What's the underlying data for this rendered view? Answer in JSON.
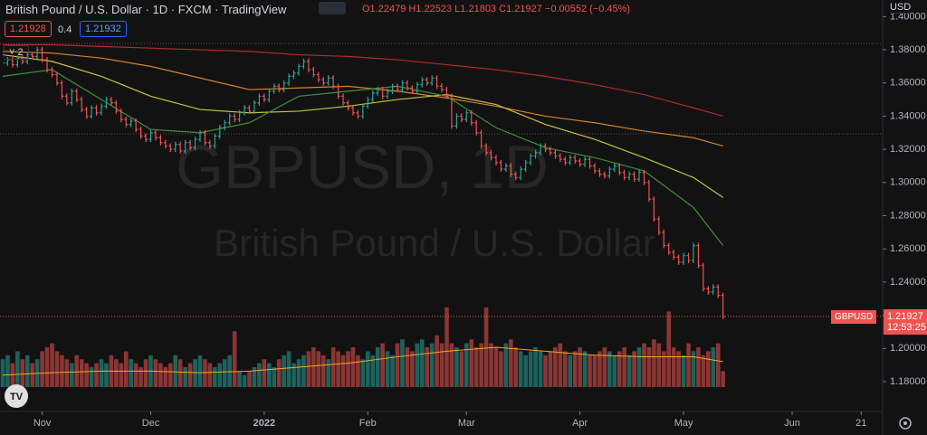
{
  "header": {
    "symbol": "British Pound / U.S. Dollar · 1D · FXCM · TradingView",
    "ohlc": [
      "O1.22479",
      "H1.22523",
      "L1.21803",
      "C1.21927"
    ],
    "change": "−0.00552 (−0.45%)",
    "sell": "1.21928",
    "spread": "0.4",
    "buy": "1.21932",
    "collapse": "2",
    "currency": "USD"
  },
  "chart_data": {
    "type": "ohlc",
    "watermark": [
      "GBPUSD, 1D",
      "British Pound / U.S. Dollar"
    ],
    "up_color": "#26a69a",
    "down_color": "#ef5350",
    "values": [
      1.372,
      1.374,
      1.371,
      1.375,
      1.373,
      1.377,
      1.376,
      1.38,
      1.374,
      1.368,
      1.365,
      1.36,
      1.352,
      1.348,
      1.355,
      1.35,
      1.344,
      1.34,
      1.345,
      1.342,
      1.346,
      1.35,
      1.348,
      1.343,
      1.338,
      1.335,
      1.337,
      1.332,
      1.328,
      1.326,
      1.33,
      1.327,
      1.324,
      1.322,
      1.32,
      1.323,
      1.319,
      1.324,
      1.321,
      1.326,
      1.33,
      1.324,
      1.322,
      1.328,
      1.333,
      1.336,
      1.34,
      1.338,
      1.342,
      1.345,
      1.343,
      1.348,
      1.352,
      1.35,
      1.355,
      1.358,
      1.356,
      1.36,
      1.364,
      1.366,
      1.37,
      1.373,
      1.368,
      1.365,
      1.362,
      1.36,
      1.363,
      1.358,
      1.352,
      1.348,
      1.345,
      1.342,
      1.34,
      1.346,
      1.35,
      1.354,
      1.356,
      1.352,
      1.355,
      1.358,
      1.356,
      1.36,
      1.357,
      1.355,
      1.359,
      1.362,
      1.36,
      1.363,
      1.358,
      1.356,
      1.352,
      1.334,
      1.34,
      1.338,
      1.342,
      1.336,
      1.33,
      1.322,
      1.318,
      1.315,
      1.312,
      1.308,
      1.31,
      1.305,
      1.303,
      1.308,
      1.312,
      1.316,
      1.318,
      1.322,
      1.32,
      1.318,
      1.316,
      1.314,
      1.312,
      1.315,
      1.313,
      1.311,
      1.314,
      1.31,
      1.307,
      1.305,
      1.304,
      1.308,
      1.31,
      1.306,
      1.303,
      1.305,
      1.302,
      1.306,
      1.3,
      1.29,
      1.278,
      1.27,
      1.262,
      1.258,
      1.255,
      1.252,
      1.256,
      1.253,
      1.262,
      1.25,
      1.236,
      1.234,
      1.237,
      1.232,
      1.21927
    ],
    "volume": [
      35,
      40,
      30,
      45,
      35,
      40,
      30,
      35,
      45,
      50,
      55,
      45,
      40,
      35,
      30,
      40,
      35,
      30,
      25,
      30,
      35,
      30,
      40,
      35,
      30,
      45,
      35,
      30,
      25,
      35,
      40,
      35,
      30,
      25,
      30,
      40,
      35,
      25,
      30,
      35,
      40,
      35,
      30,
      25,
      30,
      35,
      40,
      70,
      20,
      15,
      20,
      25,
      30,
      35,
      30,
      25,
      35,
      40,
      45,
      30,
      35,
      40,
      45,
      50,
      45,
      40,
      35,
      50,
      45,
      40,
      45,
      50,
      40,
      35,
      45,
      40,
      50,
      55,
      45,
      40,
      55,
      60,
      50,
      45,
      55,
      60,
      50,
      55,
      65,
      55,
      100,
      55,
      50,
      45,
      55,
      60,
      50,
      55,
      100,
      55,
      50,
      45,
      55,
      60,
      50,
      45,
      40,
      45,
      50,
      45,
      40,
      45,
      50,
      55,
      45,
      40,
      45,
      50,
      45,
      40,
      40,
      45,
      50,
      45,
      40,
      45,
      50,
      40,
      45,
      50,
      55,
      50,
      60,
      55,
      45,
      95,
      50,
      45,
      40,
      55,
      45,
      50,
      40,
      45,
      50,
      55,
      20
    ],
    "volume_lim": [
      0,
      100
    ],
    "ma_x": [
      0,
      10,
      20,
      30,
      40,
      50,
      60,
      70,
      80,
      90,
      100,
      110,
      120,
      130,
      140,
      146
    ],
    "moving_averages": [
      {
        "color": "#b22c2c",
        "values": [
          1.383,
          1.383,
          1.382,
          1.381,
          1.38,
          1.379,
          1.377,
          1.376,
          1.374,
          1.371,
          1.368,
          1.364,
          1.359,
          1.353,
          1.345,
          1.34
        ]
      },
      {
        "color": "#d9822b",
        "values": [
          1.379,
          1.378,
          1.375,
          1.37,
          1.363,
          1.356,
          1.357,
          1.358,
          1.355,
          1.351,
          1.346,
          1.34,
          1.336,
          1.331,
          1.327,
          1.322
        ]
      },
      {
        "color": "#c9c43a",
        "values": [
          1.377,
          1.373,
          1.364,
          1.352,
          1.344,
          1.342,
          1.343,
          1.346,
          1.35,
          1.353,
          1.347,
          1.335,
          1.326,
          1.315,
          1.303,
          1.291
        ]
      },
      {
        "color": "#3f8f3a",
        "values": [
          1.364,
          1.368,
          1.35,
          1.332,
          1.33,
          1.336,
          1.352,
          1.355,
          1.358,
          1.352,
          1.333,
          1.321,
          1.315,
          1.307,
          1.285,
          1.262
        ]
      }
    ],
    "volume_ma": {
      "color": "#f5a623",
      "values": [
        15,
        18,
        20,
        20,
        18,
        20,
        25,
        30,
        38,
        45,
        50,
        45,
        40,
        38,
        38,
        32
      ]
    },
    "price_lines": [
      1.3838,
      1.3293
    ],
    "ylim": [
      1.162,
      1.41
    ],
    "yticks": [
      {
        "value": 1.18,
        "label": "1.18000"
      },
      {
        "value": 1.2,
        "label": "1.20000"
      },
      {
        "value": 1.22,
        "label": "1.22000"
      },
      {
        "value": 1.24,
        "label": "1.24000"
      },
      {
        "value": 1.26,
        "label": "1.26000"
      },
      {
        "value": 1.28,
        "label": "1.28000"
      },
      {
        "value": 1.3,
        "label": "1.30000"
      },
      {
        "value": 1.32,
        "label": "1.32000"
      },
      {
        "value": 1.34,
        "label": "1.34000"
      },
      {
        "value": 1.36,
        "label": "1.36000"
      },
      {
        "value": 1.38,
        "label": "1.38000"
      },
      {
        "value": 1.4,
        "label": "1.40000"
      }
    ],
    "xlim": [
      -0.55,
      178.35
    ],
    "xticks": [
      {
        "value": 8,
        "label": "Nov"
      },
      {
        "value": 30,
        "label": "Dec"
      },
      {
        "value": 53,
        "label": "2022"
      },
      {
        "value": 74,
        "label": "Feb"
      },
      {
        "value": 94,
        "label": "Mar"
      },
      {
        "value": 117,
        "label": "Apr"
      },
      {
        "value": 138,
        "label": "May"
      },
      {
        "value": 160,
        "label": "Jun"
      },
      {
        "value": 174,
        "label": "21"
      }
    ],
    "symbol_label": "GBPUSD",
    "last_price_label": "1.21927",
    "countdown": "12:53:25"
  }
}
